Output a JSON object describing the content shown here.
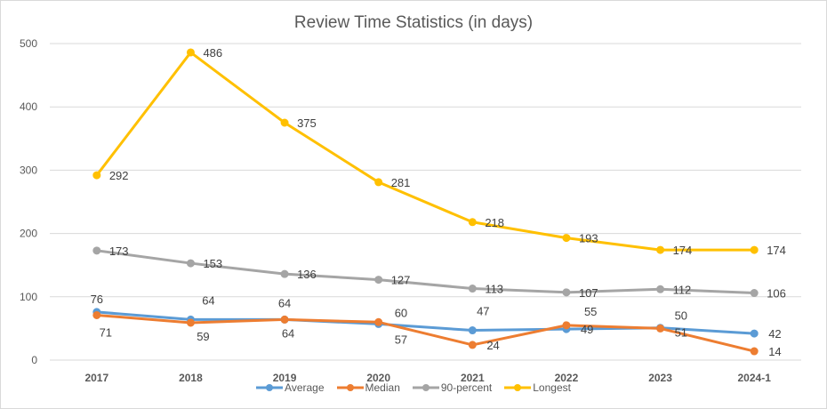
{
  "chart_data": {
    "type": "line",
    "title": "Review Time Statistics (in days)",
    "xlabel": "",
    "ylabel": "",
    "categories": [
      "2017",
      "2018",
      "2019",
      "2020",
      "2021",
      "2022",
      "2023",
      "2024-1"
    ],
    "ylim": [
      0,
      500
    ],
    "yticks": [
      0,
      100,
      200,
      300,
      400,
      500
    ],
    "grid": true,
    "legend_position": "bottom",
    "series": [
      {
        "name": "Average",
        "color": "#5b9bd5",
        "values": [
          76,
          64,
          64,
          57,
          47,
          49,
          51,
          42
        ]
      },
      {
        "name": "Median",
        "color": "#ed7d31",
        "values": [
          71,
          59,
          64,
          60,
          24,
          55,
          50,
          14
        ]
      },
      {
        "name": "90-percent",
        "color": "#a5a5a5",
        "values": [
          173,
          153,
          136,
          127,
          113,
          107,
          112,
          106
        ]
      },
      {
        "name": "Longest",
        "color": "#ffc000",
        "values": [
          292,
          486,
          375,
          281,
          218,
          193,
          174,
          174
        ]
      }
    ]
  }
}
